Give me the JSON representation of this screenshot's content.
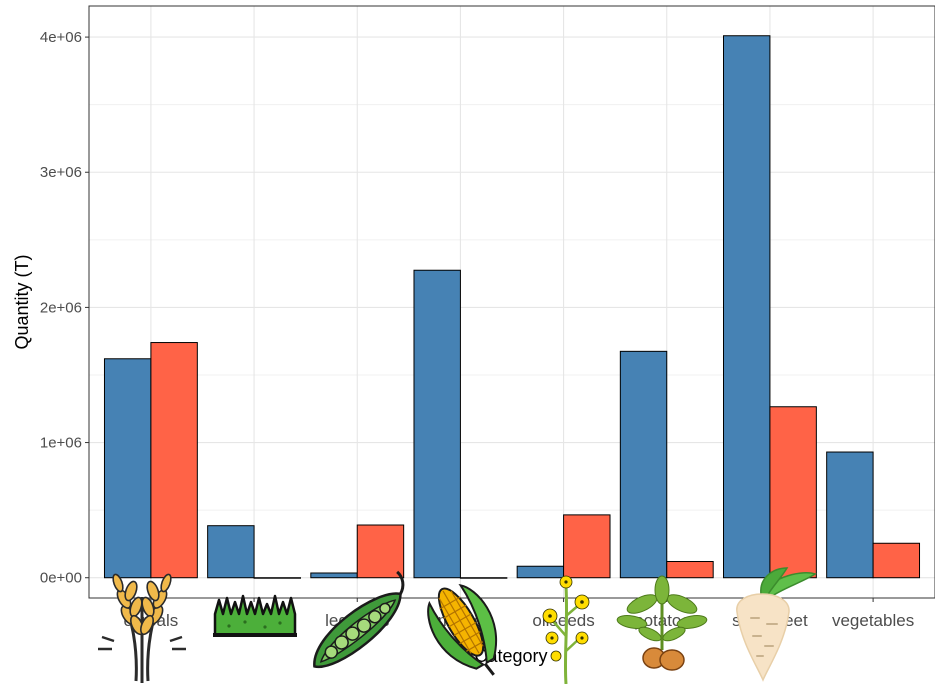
{
  "chart_data": {
    "type": "bar",
    "title": "",
    "xlabel": "Category",
    "ylabel": "Quantity (T)",
    "categories": [
      "cereals",
      "grass",
      "legumes",
      "maize",
      "oilseeds",
      "potatoes",
      "sugarbeet",
      "vegetables"
    ],
    "series": [
      {
        "color": "#4682b4",
        "values": [
          1620000,
          385000,
          35000,
          2275000,
          85000,
          1675000,
          4010000,
          930000
        ]
      },
      {
        "color": "#ff6347",
        "values": [
          1740000,
          0,
          390000,
          0,
          465000,
          120000,
          1265000,
          255000
        ]
      }
    ],
    "ylim": [
      -150000,
      4230000
    ],
    "yticks": [
      0,
      1000000,
      2000000,
      3000000,
      4000000
    ],
    "ytick_labels": [
      "0e+00",
      "1e+06",
      "2e+06",
      "3e+06",
      "4e+06"
    ],
    "grid": true,
    "legend": "none",
    "icons": [
      "wheat-icon",
      "grass-icon",
      "pea-pod-icon",
      "corn-icon",
      "rapeseed-flower-icon",
      "potato-plant-icon",
      "sugarbeet-icon",
      ""
    ]
  }
}
